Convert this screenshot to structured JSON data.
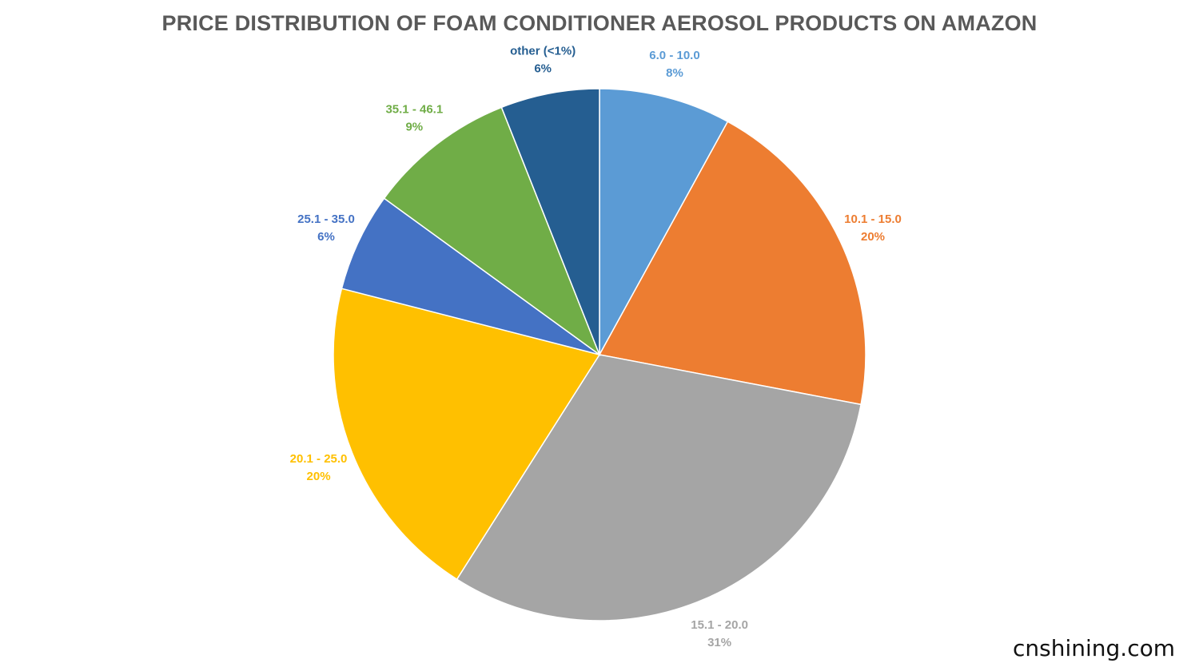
{
  "chart_data": {
    "type": "pie",
    "title": "PRICE DISTRIBUTION OF FOAM CONDITIONER AEROSOL PRODUCTS ON AMAZON",
    "slices": [
      {
        "label": "6.0 - 10.0",
        "percent_label": "8%",
        "value": 8,
        "color": "#5B9BD5"
      },
      {
        "label": "10.1 - 15.0",
        "percent_label": "20%",
        "value": 20,
        "color": "#ED7D31"
      },
      {
        "label": "15.1 - 20.0",
        "percent_label": "31%",
        "value": 31,
        "color": "#A5A5A5"
      },
      {
        "label": "20.1 - 25.0",
        "percent_label": "20%",
        "value": 20,
        "color": "#FFC000"
      },
      {
        "label": "25.1 - 35.0",
        "percent_label": "6%",
        "value": 6,
        "color": "#4472C4"
      },
      {
        "label": "35.1 - 46.1",
        "percent_label": "9%",
        "value": 9,
        "color": "#70AD47"
      },
      {
        "label": "other (<1%)",
        "percent_label": "6%",
        "value": 6,
        "color": "#255E91"
      }
    ],
    "start_angle_deg": 0,
    "direction": "clockwise",
    "label_position": "outside"
  },
  "watermark": "cnshining.com"
}
